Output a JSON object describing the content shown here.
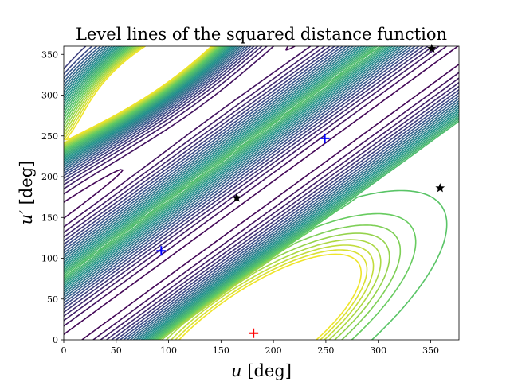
{
  "chart_data": {
    "type": "contour",
    "title": "Level lines of the squared distance function",
    "xlabel_var": "u",
    "ylabel_var": "u′",
    "xlabel_unit": "[deg]",
    "ylabel_unit": "[deg]",
    "xlim": [
      0,
      377
    ],
    "ylim": [
      0,
      360
    ],
    "xticks": [
      0,
      50,
      100,
      150,
      200,
      250,
      300,
      350
    ],
    "yticks": [
      0,
      50,
      100,
      150,
      200,
      250,
      300,
      350
    ],
    "colormap": "viridis",
    "valley_slope": 0.94,
    "valley_intercepts": [
      -5,
      160,
      325
    ],
    "ridge_intercepts": [
      -88,
      78,
      242
    ],
    "peaks": [
      {
        "x": 182,
        "y": 8
      },
      {
        "x": 80,
        "y": 340
      }
    ],
    "markers": [
      {
        "x": 93,
        "y": 109,
        "marker": "plus",
        "color": "#0000ff"
      },
      {
        "x": 249,
        "y": 247,
        "marker": "plus",
        "color": "#0000ff"
      },
      {
        "x": 181,
        "y": 8,
        "marker": "plus",
        "color": "#ff0000"
      },
      {
        "x": 165,
        "y": 174,
        "marker": "star",
        "color": "#000000"
      },
      {
        "x": 351,
        "y": 357,
        "marker": "star",
        "color": "#000000"
      },
      {
        "x": 359,
        "y": 186,
        "marker": "star",
        "color": "#000000"
      }
    ]
  }
}
